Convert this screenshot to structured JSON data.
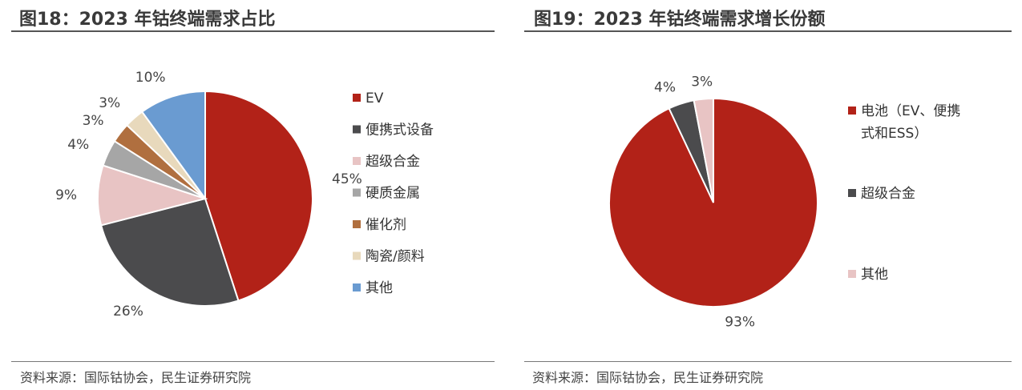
{
  "left": {
    "title": "图18：2023 年钴终端需求占比",
    "source": "资料来源：国际钴协会，民生证券研究院"
  },
  "right": {
    "title": "图19：2023 年钴终端需求增长份额",
    "source": "资料来源：国际钴协会，民生证券研究院"
  },
  "chart_data": [
    {
      "type": "pie",
      "title": "2023 年钴终端需求占比",
      "legend_position": "right",
      "slices": [
        {
          "label": "EV",
          "value": 45,
          "value_label": "45%",
          "color": "#b22218"
        },
        {
          "label": "便携式设备",
          "value": 26,
          "value_label": "26%",
          "color": "#4b4b4d"
        },
        {
          "label": "超级合金",
          "value": 9,
          "value_label": "9%",
          "color": "#e8c4c4"
        },
        {
          "label": "硬质金属",
          "value": 4,
          "value_label": "4%",
          "color": "#a6a6a6"
        },
        {
          "label": "催化剂",
          "value": 3,
          "value_label": "3%",
          "color": "#b06f3f"
        },
        {
          "label": "陶瓷/颜料",
          "value": 3,
          "value_label": "3%",
          "color": "#e8d9bc"
        },
        {
          "label": "其他",
          "value": 10,
          "value_label": "10%",
          "color": "#6a9bd1"
        }
      ]
    },
    {
      "type": "pie",
      "title": "2023 年钴终端需求增长份额",
      "legend_position": "right",
      "slices": [
        {
          "label": "电池（EV、便携式和ESS）",
          "legend_lines": [
            "电池（EV、便携",
            "式和ESS）"
          ],
          "value": 93,
          "value_label": "93%",
          "color": "#b22218"
        },
        {
          "label": "超级合金",
          "value": 4,
          "value_label": "4%",
          "color": "#4b4b4d"
        },
        {
          "label": "其他",
          "value": 3,
          "value_label": "3%",
          "color": "#e8c4c4"
        }
      ]
    }
  ]
}
